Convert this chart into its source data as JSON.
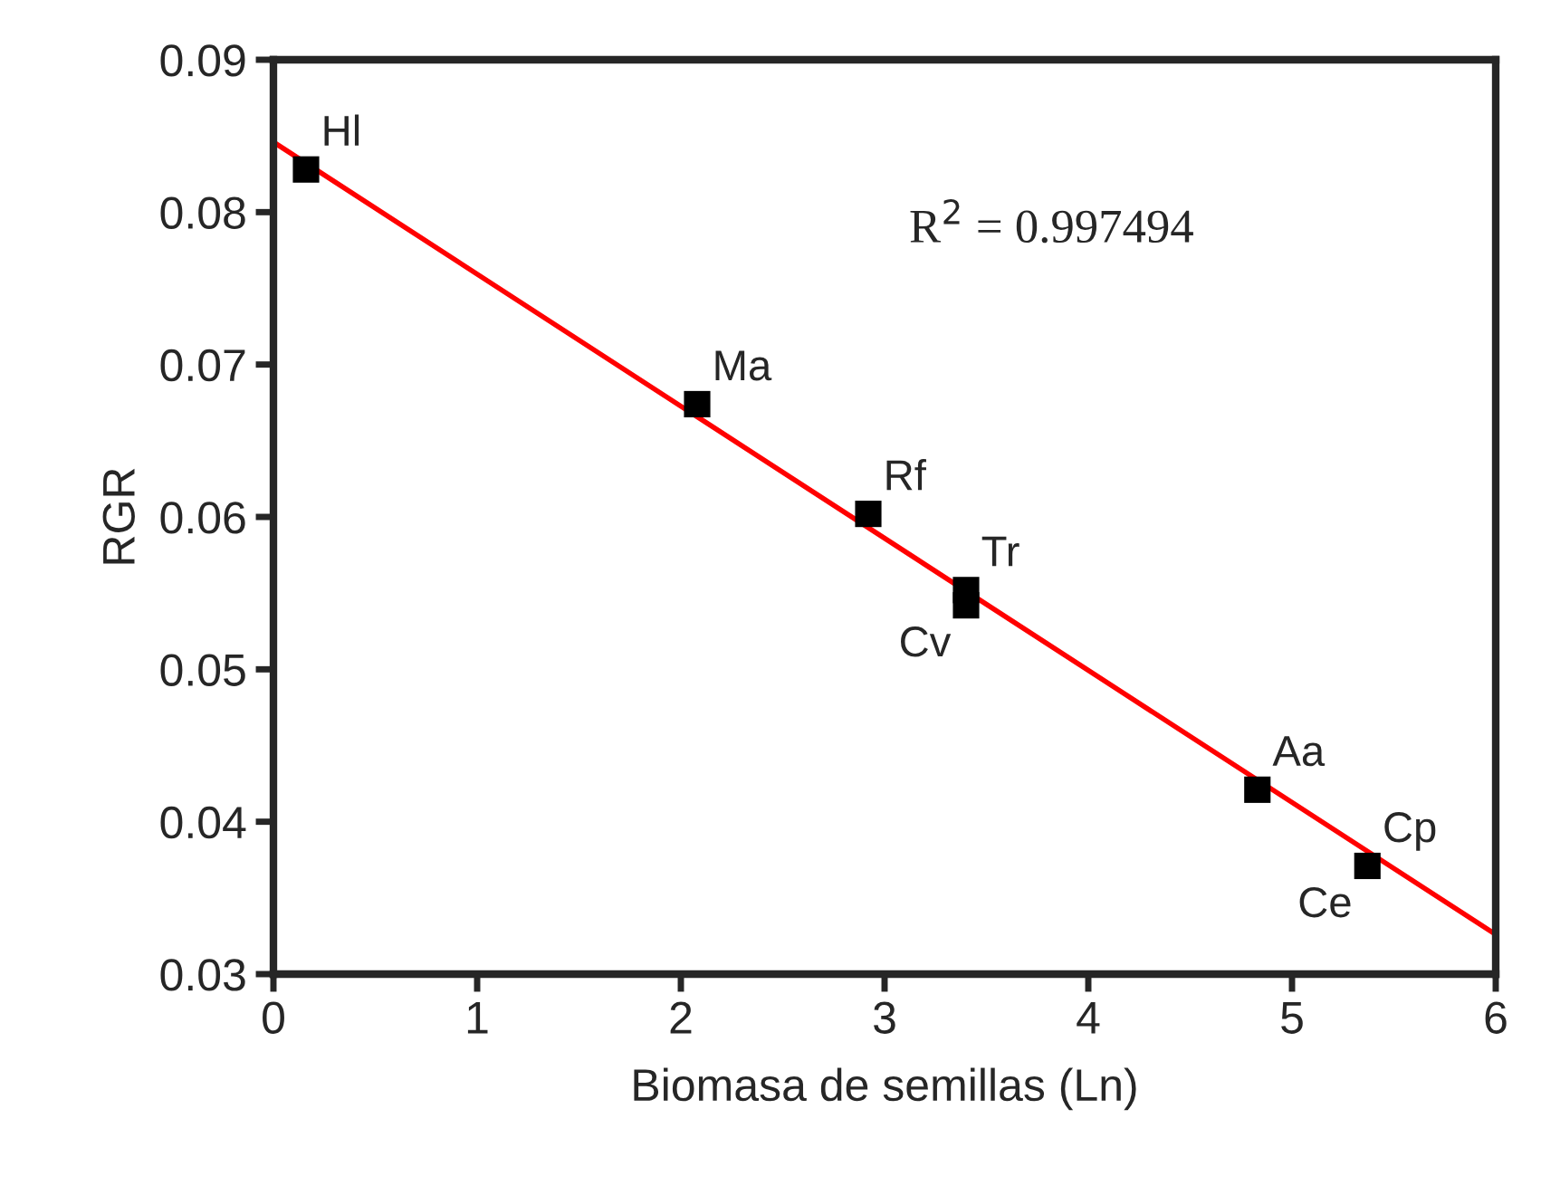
{
  "chart_data": {
    "type": "scatter",
    "xlabel": "Biomasa de semillas (Ln)",
    "ylabel": "RGR",
    "xlim": [
      0,
      6
    ],
    "xticks": [
      0,
      1,
      2,
      3,
      4,
      5,
      6
    ],
    "ylim": [
      0.03,
      0.09
    ],
    "yticks": [
      0.03,
      0.04,
      0.05,
      0.06,
      0.07,
      0.08,
      0.09
    ],
    "grid": false,
    "legend": false,
    "series": [
      {
        "color": "#000000",
        "marker": "square",
        "x": [
          0.16,
          2.08,
          2.92,
          3.4,
          3.4,
          4.83,
          5.37
        ],
        "values": [
          0.0828,
          0.0674,
          0.0602,
          0.0552,
          0.0542,
          0.0421,
          0.0371
        ]
      },
      {
        "type": "line",
        "color": "#ff0000",
        "line_style": "solid",
        "marker": "none",
        "x": [
          0,
          6
        ],
        "values": [
          0.0846,
          0.0326
        ]
      }
    ],
    "annotations": [
      {
        "text": "Hl",
        "x": 0.16,
        "y": 0.0828
      },
      {
        "text": "Ma",
        "x": 2.08,
        "y": 0.0674
      },
      {
        "text": "Rf",
        "x": 2.92,
        "y": 0.0602
      },
      {
        "text": "Tr",
        "x": 3.4,
        "y": 0.0552
      },
      {
        "text": "Cv",
        "x": 3.4,
        "y": 0.0542
      },
      {
        "text": "Aa",
        "x": 4.83,
        "y": 0.0421
      },
      {
        "text": "Cp",
        "x": 5.37,
        "y": 0.0371
      },
      {
        "text": "Ce",
        "x": 5.37,
        "y": 0.0371
      },
      "R$^{2}$ = 0.997494"
    ]
  }
}
